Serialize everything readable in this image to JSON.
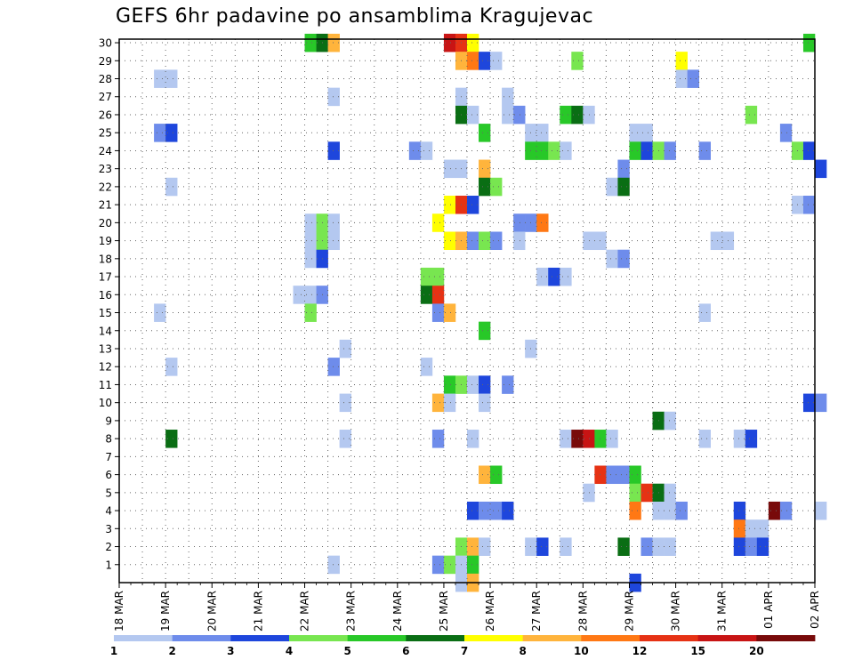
{
  "title": "GEFS 6hr padavine po ansamblima Kragujevac",
  "chart_data": {
    "type": "heatmap",
    "title": "GEFS 6hr padavine po ansamblima Kragujevac",
    "xlabel": "",
    "ylabel": "",
    "x_ticks": [
      "18 MAR",
      "19 MAR",
      "20 MAR",
      "21 MAR",
      "22 MAR",
      "23 MAR",
      "24 MAR",
      "25 MAR",
      "26 MAR",
      "27 MAR",
      "28 MAR",
      "29 MAR",
      "30 MAR",
      "31 MAR",
      "01 APR",
      "02 APR"
    ],
    "y_ticks": [
      "1",
      "2",
      "3",
      "4",
      "5",
      "6",
      "7",
      "8",
      "9",
      "10",
      "11",
      "12",
      "13",
      "14",
      "15",
      "16",
      "17",
      "18",
      "19",
      "20",
      "21",
      "22",
      "23",
      "24",
      "25",
      "26",
      "27",
      "28",
      "29",
      "30"
    ],
    "x_range": [
      "18 MAR 00Z",
      "02 APR 00Z"
    ],
    "y_range": [
      0,
      30
    ],
    "time_step_hours": 6,
    "grid": true,
    "colorbar": {
      "labels": [
        "1",
        "2",
        "3",
        "4",
        "5",
        "6",
        "7",
        "8",
        "10",
        "12",
        "15",
        "20"
      ],
      "colors": [
        "#b4c8f0",
        "#6e8ceb",
        "#1e46dc",
        "#78e650",
        "#28c828",
        "#0a6e14",
        "#ffff00",
        "#ffb43c",
        "#ff7814",
        "#e63214",
        "#c81414",
        "#780a0a"
      ]
    },
    "cells": [
      {
        "member": 30,
        "time": "22 MAR 00Z",
        "bin": 5
      },
      {
        "member": 30,
        "time": "22 MAR 06Z",
        "bin": 6
      },
      {
        "member": 30,
        "time": "22 MAR 12Z",
        "bin": 8
      },
      {
        "member": 30,
        "time": "25 MAR 00Z",
        "bin": 11
      },
      {
        "member": 30,
        "time": "25 MAR 06Z",
        "bin": 10
      },
      {
        "member": 30,
        "time": "25 MAR 12Z",
        "bin": 7
      },
      {
        "member": 30,
        "time": "01 APR 18Z",
        "bin": 5
      },
      {
        "member": 29,
        "time": "25 MAR 06Z",
        "bin": 8
      },
      {
        "member": 29,
        "time": "25 MAR 12Z",
        "bin": 9
      },
      {
        "member": 29,
        "time": "25 MAR 18Z",
        "bin": 3
      },
      {
        "member": 29,
        "time": "26 MAR 00Z",
        "bin": 1
      },
      {
        "member": 29,
        "time": "27 MAR 18Z",
        "bin": 4
      },
      {
        "member": 29,
        "time": "30 MAR 00Z",
        "bin": 7
      },
      {
        "member": 28,
        "time": "18 MAR 18Z",
        "bin": 1
      },
      {
        "member": 28,
        "time": "19 MAR 00Z",
        "bin": 1
      },
      {
        "member": 28,
        "time": "30 MAR 00Z",
        "bin": 1
      },
      {
        "member": 28,
        "time": "30 MAR 06Z",
        "bin": 2
      },
      {
        "member": 27,
        "time": "22 MAR 12Z",
        "bin": 1
      },
      {
        "member": 27,
        "time": "25 MAR 06Z",
        "bin": 1
      },
      {
        "member": 27,
        "time": "26 MAR 06Z",
        "bin": 1
      },
      {
        "member": 26,
        "time": "25 MAR 06Z",
        "bin": 6
      },
      {
        "member": 26,
        "time": "25 MAR 12Z",
        "bin": 1
      },
      {
        "member": 26,
        "time": "26 MAR 06Z",
        "bin": 1
      },
      {
        "member": 26,
        "time": "26 MAR 12Z",
        "bin": 2
      },
      {
        "member": 26,
        "time": "27 MAR 12Z",
        "bin": 5
      },
      {
        "member": 26,
        "time": "27 MAR 18Z",
        "bin": 6
      },
      {
        "member": 26,
        "time": "28 MAR 00Z",
        "bin": 1
      },
      {
        "member": 26,
        "time": "31 MAR 12Z",
        "bin": 4
      },
      {
        "member": 25,
        "time": "18 MAR 18Z",
        "bin": 2
      },
      {
        "member": 25,
        "time": "19 MAR 00Z",
        "bin": 3
      },
      {
        "member": 25,
        "time": "25 MAR 18Z",
        "bin": 5
      },
      {
        "member": 25,
        "time": "26 MAR 18Z",
        "bin": 1
      },
      {
        "member": 25,
        "time": "27 MAR 00Z",
        "bin": 1
      },
      {
        "member": 25,
        "time": "29 MAR 00Z",
        "bin": 1
      },
      {
        "member": 25,
        "time": "29 MAR 06Z",
        "bin": 1
      },
      {
        "member": 25,
        "time": "01 APR 06Z",
        "bin": 2
      },
      {
        "member": 24,
        "time": "22 MAR 12Z",
        "bin": 3
      },
      {
        "member": 24,
        "time": "24 MAR 06Z",
        "bin": 2
      },
      {
        "member": 24,
        "time": "24 MAR 12Z",
        "bin": 1
      },
      {
        "member": 24,
        "time": "26 MAR 18Z",
        "bin": 5
      },
      {
        "member": 24,
        "time": "27 MAR 00Z",
        "bin": 5
      },
      {
        "member": 24,
        "time": "27 MAR 06Z",
        "bin": 4
      },
      {
        "member": 24,
        "time": "27 MAR 12Z",
        "bin": 1
      },
      {
        "member": 24,
        "time": "29 MAR 00Z",
        "bin": 5
      },
      {
        "member": 24,
        "time": "29 MAR 06Z",
        "bin": 3
      },
      {
        "member": 24,
        "time": "29 MAR 12Z",
        "bin": 4
      },
      {
        "member": 24,
        "time": "29 MAR 18Z",
        "bin": 2
      },
      {
        "member": 24,
        "time": "30 MAR 12Z",
        "bin": 2
      },
      {
        "member": 24,
        "time": "01 APR 12Z",
        "bin": 4
      },
      {
        "member": 24,
        "time": "01 APR 18Z",
        "bin": 3
      },
      {
        "member": 23,
        "time": "25 MAR 00Z",
        "bin": 1
      },
      {
        "member": 23,
        "time": "25 MAR 06Z",
        "bin": 1
      },
      {
        "member": 23,
        "time": "25 MAR 18Z",
        "bin": 8
      },
      {
        "member": 23,
        "time": "28 MAR 18Z",
        "bin": 2
      },
      {
        "member": 23,
        "time": "02 APR 00Z",
        "bin": 3
      },
      {
        "member": 22,
        "time": "19 MAR 00Z",
        "bin": 1
      },
      {
        "member": 22,
        "time": "25 MAR 18Z",
        "bin": 6
      },
      {
        "member": 22,
        "time": "26 MAR 00Z",
        "bin": 4
      },
      {
        "member": 22,
        "time": "28 MAR 12Z",
        "bin": 1
      },
      {
        "member": 22,
        "time": "28 MAR 18Z",
        "bin": 6
      },
      {
        "member": 21,
        "time": "25 MAR 00Z",
        "bin": 7
      },
      {
        "member": 21,
        "time": "25 MAR 06Z",
        "bin": 10
      },
      {
        "member": 21,
        "time": "25 MAR 12Z",
        "bin": 3
      },
      {
        "member": 21,
        "time": "01 APR 12Z",
        "bin": 1
      },
      {
        "member": 21,
        "time": "01 APR 18Z",
        "bin": 2
      },
      {
        "member": 20,
        "time": "22 MAR 00Z",
        "bin": 1
      },
      {
        "member": 20,
        "time": "22 MAR 06Z",
        "bin": 4
      },
      {
        "member": 20,
        "time": "22 MAR 12Z",
        "bin": 1
      },
      {
        "member": 20,
        "time": "24 MAR 18Z",
        "bin": 7
      },
      {
        "member": 20,
        "time": "26 MAR 12Z",
        "bin": 2
      },
      {
        "member": 20,
        "time": "26 MAR 18Z",
        "bin": 2
      },
      {
        "member": 20,
        "time": "27 MAR 00Z",
        "bin": 9
      },
      {
        "member": 19,
        "time": "22 MAR 00Z",
        "bin": 1
      },
      {
        "member": 19,
        "time": "22 MAR 06Z",
        "bin": 4
      },
      {
        "member": 19,
        "time": "22 MAR 12Z",
        "bin": 1
      },
      {
        "member": 19,
        "time": "25 MAR 00Z",
        "bin": 7
      },
      {
        "member": 19,
        "time": "25 MAR 06Z",
        "bin": 8
      },
      {
        "member": 19,
        "time": "25 MAR 12Z",
        "bin": 2
      },
      {
        "member": 19,
        "time": "25 MAR 18Z",
        "bin": 4
      },
      {
        "member": 19,
        "time": "26 MAR 00Z",
        "bin": 2
      },
      {
        "member": 19,
        "time": "26 MAR 12Z",
        "bin": 1
      },
      {
        "member": 19,
        "time": "28 MAR 00Z",
        "bin": 1
      },
      {
        "member": 19,
        "time": "28 MAR 06Z",
        "bin": 1
      },
      {
        "member": 19,
        "time": "30 MAR 18Z",
        "bin": 1
      },
      {
        "member": 19,
        "time": "31 MAR 00Z",
        "bin": 1
      },
      {
        "member": 18,
        "time": "22 MAR 00Z",
        "bin": 1
      },
      {
        "member": 18,
        "time": "22 MAR 06Z",
        "bin": 3
      },
      {
        "member": 18,
        "time": "28 MAR 12Z",
        "bin": 1
      },
      {
        "member": 18,
        "time": "28 MAR 18Z",
        "bin": 2
      },
      {
        "member": 17,
        "time": "24 MAR 12Z",
        "bin": 4
      },
      {
        "member": 17,
        "time": "24 MAR 18Z",
        "bin": 4
      },
      {
        "member": 17,
        "time": "27 MAR 00Z",
        "bin": 1
      },
      {
        "member": 17,
        "time": "27 MAR 06Z",
        "bin": 3
      },
      {
        "member": 17,
        "time": "27 MAR 12Z",
        "bin": 1
      },
      {
        "member": 16,
        "time": "21 MAR 18Z",
        "bin": 1
      },
      {
        "member": 16,
        "time": "22 MAR 00Z",
        "bin": 1
      },
      {
        "member": 16,
        "time": "22 MAR 06Z",
        "bin": 2
      },
      {
        "member": 16,
        "time": "24 MAR 12Z",
        "bin": 6
      },
      {
        "member": 16,
        "time": "24 MAR 18Z",
        "bin": 10
      },
      {
        "member": 15,
        "time": "18 MAR 18Z",
        "bin": 1
      },
      {
        "member": 15,
        "time": "22 MAR 00Z",
        "bin": 4
      },
      {
        "member": 15,
        "time": "24 MAR 18Z",
        "bin": 2
      },
      {
        "member": 15,
        "time": "25 MAR 00Z",
        "bin": 8
      },
      {
        "member": 15,
        "time": "30 MAR 12Z",
        "bin": 1
      },
      {
        "member": 14,
        "time": "25 MAR 18Z",
        "bin": 5
      },
      {
        "member": 13,
        "time": "22 MAR 18Z",
        "bin": 1
      },
      {
        "member": 13,
        "time": "26 MAR 18Z",
        "bin": 1
      },
      {
        "member": 12,
        "time": "19 MAR 00Z",
        "bin": 1
      },
      {
        "member": 12,
        "time": "22 MAR 12Z",
        "bin": 2
      },
      {
        "member": 12,
        "time": "24 MAR 12Z",
        "bin": 1
      },
      {
        "member": 11,
        "time": "25 MAR 00Z",
        "bin": 5
      },
      {
        "member": 11,
        "time": "25 MAR 06Z",
        "bin": 4
      },
      {
        "member": 11,
        "time": "25 MAR 12Z",
        "bin": 1
      },
      {
        "member": 11,
        "time": "25 MAR 18Z",
        "bin": 3
      },
      {
        "member": 11,
        "time": "26 MAR 06Z",
        "bin": 2
      },
      {
        "member": 10,
        "time": "22 MAR 18Z",
        "bin": 1
      },
      {
        "member": 10,
        "time": "24 MAR 18Z",
        "bin": 8
      },
      {
        "member": 10,
        "time": "25 MAR 00Z",
        "bin": 1
      },
      {
        "member": 10,
        "time": "25 MAR 18Z",
        "bin": 1
      },
      {
        "member": 10,
        "time": "01 APR 18Z",
        "bin": 3
      },
      {
        "member": 10,
        "time": "02 APR 00Z",
        "bin": 2
      },
      {
        "member": 9,
        "time": "29 MAR 12Z",
        "bin": 6
      },
      {
        "member": 9,
        "time": "29 MAR 18Z",
        "bin": 1
      },
      {
        "member": 8,
        "time": "19 MAR 00Z",
        "bin": 6
      },
      {
        "member": 8,
        "time": "22 MAR 18Z",
        "bin": 1
      },
      {
        "member": 8,
        "time": "24 MAR 18Z",
        "bin": 2
      },
      {
        "member": 8,
        "time": "25 MAR 12Z",
        "bin": 1
      },
      {
        "member": 8,
        "time": "27 MAR 12Z",
        "bin": 1
      },
      {
        "member": 8,
        "time": "27 MAR 18Z",
        "bin": 12
      },
      {
        "member": 8,
        "time": "28 MAR 00Z",
        "bin": 11
      },
      {
        "member": 8,
        "time": "28 MAR 06Z",
        "bin": 5
      },
      {
        "member": 8,
        "time": "28 MAR 12Z",
        "bin": 1
      },
      {
        "member": 8,
        "time": "30 MAR 12Z",
        "bin": 1
      },
      {
        "member": 8,
        "time": "31 MAR 06Z",
        "bin": 1
      },
      {
        "member": 8,
        "time": "31 MAR 12Z",
        "bin": 3
      },
      {
        "member": 6,
        "time": "25 MAR 18Z",
        "bin": 8
      },
      {
        "member": 6,
        "time": "26 MAR 00Z",
        "bin": 5
      },
      {
        "member": 6,
        "time": "28 MAR 06Z",
        "bin": 10
      },
      {
        "member": 6,
        "time": "28 MAR 12Z",
        "bin": 2
      },
      {
        "member": 6,
        "time": "28 MAR 18Z",
        "bin": 2
      },
      {
        "member": 6,
        "time": "29 MAR 00Z",
        "bin": 5
      },
      {
        "member": 5,
        "time": "28 MAR 00Z",
        "bin": 1
      },
      {
        "member": 5,
        "time": "29 MAR 00Z",
        "bin": 4
      },
      {
        "member": 5,
        "time": "29 MAR 06Z",
        "bin": 10
      },
      {
        "member": 5,
        "time": "29 MAR 12Z",
        "bin": 6
      },
      {
        "member": 5,
        "time": "29 MAR 18Z",
        "bin": 1
      },
      {
        "member": 4,
        "time": "25 MAR 12Z",
        "bin": 3
      },
      {
        "member": 4,
        "time": "25 MAR 18Z",
        "bin": 2
      },
      {
        "member": 4,
        "time": "26 MAR 00Z",
        "bin": 2
      },
      {
        "member": 4,
        "time": "26 MAR 06Z",
        "bin": 3
      },
      {
        "member": 4,
        "time": "29 MAR 00Z",
        "bin": 9
      },
      {
        "member": 4,
        "time": "29 MAR 12Z",
        "bin": 1
      },
      {
        "member": 4,
        "time": "29 MAR 18Z",
        "bin": 1
      },
      {
        "member": 4,
        "time": "30 MAR 00Z",
        "bin": 2
      },
      {
        "member": 4,
        "time": "31 MAR 06Z",
        "bin": 3
      },
      {
        "member": 4,
        "time": "01 APR 00Z",
        "bin": 12
      },
      {
        "member": 4,
        "time": "01 APR 06Z",
        "bin": 2
      },
      {
        "member": 4,
        "time": "02 APR 00Z",
        "bin": 1
      },
      {
        "member": 3,
        "time": "31 MAR 06Z",
        "bin": 9
      },
      {
        "member": 3,
        "time": "31 MAR 12Z",
        "bin": 1
      },
      {
        "member": 3,
        "time": "31 MAR 18Z",
        "bin": 1
      },
      {
        "member": 2,
        "time": "25 MAR 06Z",
        "bin": 4
      },
      {
        "member": 2,
        "time": "25 MAR 12Z",
        "bin": 8
      },
      {
        "member": 2,
        "time": "25 MAR 18Z",
        "bin": 1
      },
      {
        "member": 2,
        "time": "26 MAR 18Z",
        "bin": 1
      },
      {
        "member": 2,
        "time": "27 MAR 00Z",
        "bin": 3
      },
      {
        "member": 2,
        "time": "27 MAR 12Z",
        "bin": 1
      },
      {
        "member": 2,
        "time": "28 MAR 18Z",
        "bin": 6
      },
      {
        "member": 2,
        "time": "29 MAR 06Z",
        "bin": 2
      },
      {
        "member": 2,
        "time": "29 MAR 12Z",
        "bin": 1
      },
      {
        "member": 2,
        "time": "29 MAR 18Z",
        "bin": 1
      },
      {
        "member": 2,
        "time": "31 MAR 06Z",
        "bin": 3
      },
      {
        "member": 2,
        "time": "31 MAR 12Z",
        "bin": 2
      },
      {
        "member": 2,
        "time": "31 MAR 18Z",
        "bin": 3
      },
      {
        "member": 1,
        "time": "22 MAR 12Z",
        "bin": 1
      },
      {
        "member": 1,
        "time": "24 MAR 18Z",
        "bin": 2
      },
      {
        "member": 1,
        "time": "25 MAR 00Z",
        "bin": 4
      },
      {
        "member": 1,
        "time": "25 MAR 06Z",
        "bin": 1
      },
      {
        "member": 1,
        "time": "25 MAR 12Z",
        "bin": 5
      },
      {
        "member": 0,
        "time": "25 MAR 06Z",
        "bin": 1
      },
      {
        "member": 0,
        "time": "25 MAR 12Z",
        "bin": 8
      },
      {
        "member": 0,
        "time": "29 MAR 00Z",
        "bin": 3
      }
    ]
  }
}
